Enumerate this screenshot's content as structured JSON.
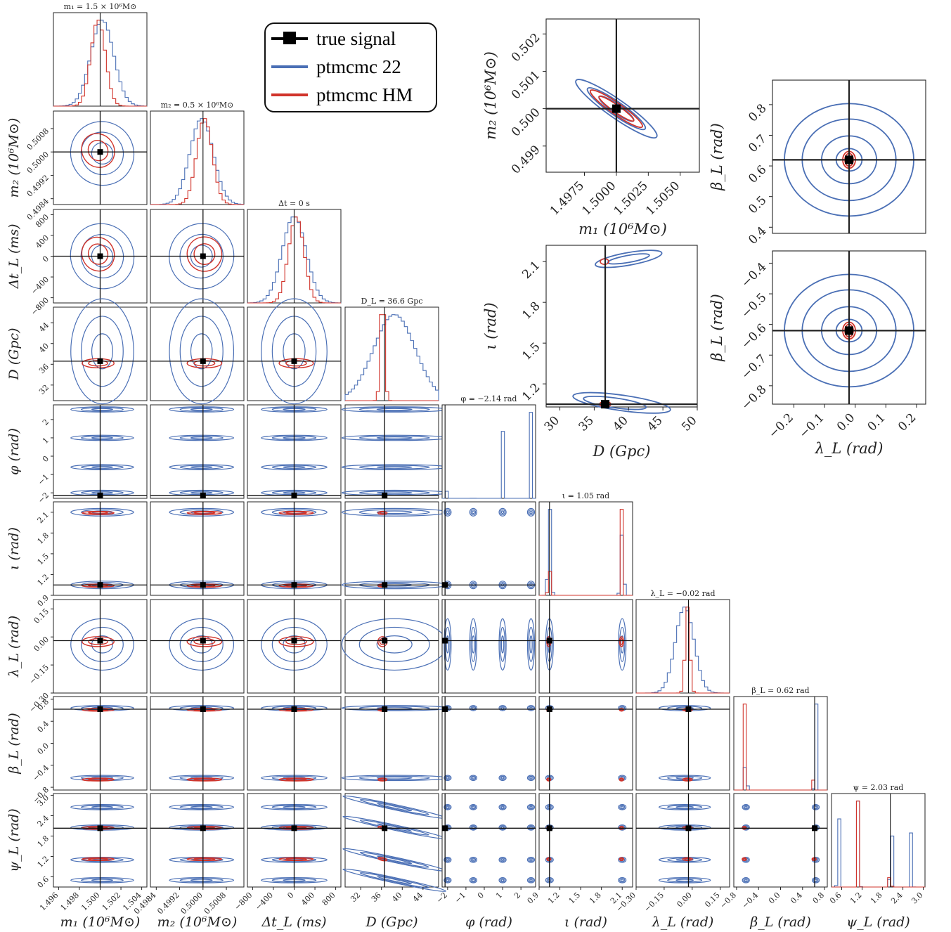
{
  "colors": {
    "true_signal": "#000000",
    "ptmcmc_22": "#4a6fb5",
    "ptmcmc_hm": "#d1342b"
  },
  "legend": [
    {
      "label": "true signal",
      "color": "#000000",
      "marker": "square"
    },
    {
      "label": "ptmcmc 22",
      "color": "#4a6fb5"
    },
    {
      "label": "ptmcmc HM",
      "color": "#d1342b"
    }
  ],
  "corner": {
    "params": [
      {
        "key": "m1",
        "xlabel": "m₁ (10⁶M⊙)",
        "ylabel": "m₂ (10⁶M⊙)",
        "title": "m₁ = 1.5 × 10⁶M⊙",
        "truth": 1.5,
        "range": [
          1.4955,
          1.5045
        ],
        "ticks": [
          "1.496",
          "1.498",
          "1.500",
          "1.502",
          "1.504"
        ],
        "tickvals": [
          1.496,
          1.498,
          1.5,
          1.502,
          1.504
        ]
      },
      {
        "key": "m2",
        "xlabel": "m₂ (10⁶M⊙)",
        "ylabel": "m₂ (10⁶M⊙)",
        "title": "m₂ = 0.5 × 10⁶M⊙",
        "truth": 0.5,
        "range": [
          0.4982,
          0.5014
        ],
        "ticks": [
          "0.4984",
          "0.4992",
          "0.5000",
          "0.5008"
        ],
        "tickvals": [
          0.4984,
          0.4992,
          0.5,
          0.5008
        ]
      },
      {
        "key": "dt",
        "xlabel": "Δt_L (ms)",
        "ylabel": "Δt_L (ms)",
        "title": "Δt = 0 s",
        "truth": 0,
        "range": [
          -900,
          900
        ],
        "ticks": [
          "−800",
          "−400",
          "0",
          "400",
          "800"
        ],
        "tickvals": [
          -800,
          -400,
          0,
          400,
          800
        ]
      },
      {
        "key": "D",
        "xlabel": "D (Gpc)",
        "ylabel": "D (Gpc)",
        "title": "D_L = 36.6 Gpc",
        "truth": 36.6,
        "range": [
          29,
          47
        ],
        "ticks": [
          "32",
          "36",
          "40",
          "44"
        ],
        "tickvals": [
          32,
          36,
          40,
          44
        ]
      },
      {
        "key": "phi",
        "xlabel": "φ (rad)",
        "ylabel": "φ (rad)",
        "title": "φ = −2.14 rad",
        "truth": -2.14,
        "range": [
          -2.3,
          2.8
        ],
        "ticks": [
          "−2",
          "−1",
          "0",
          "1",
          "2"
        ],
        "tickvals": [
          -2,
          -1,
          0,
          1,
          2
        ]
      },
      {
        "key": "iota",
        "xlabel": "ι (rad)",
        "ylabel": "ι (rad)",
        "title": "ι = 1.05 rad",
        "truth": 1.05,
        "range": [
          0.9,
          2.25
        ],
        "ticks": [
          "0.9",
          "1.2",
          "1.5",
          "1.8",
          "2.1"
        ],
        "tickvals": [
          0.9,
          1.2,
          1.5,
          1.8,
          2.1
        ]
      },
      {
        "key": "lam",
        "xlabel": "λ_L (rad)",
        "ylabel": "λ_L (rad)",
        "title": "λ_L = −0.02 rad",
        "truth": -0.02,
        "range": [
          -0.3,
          0.2
        ],
        "ticks": [
          "−0.30",
          "−0.15",
          "0.00",
          "0.15"
        ],
        "tickvals": [
          -0.3,
          -0.15,
          0,
          0.15
        ]
      },
      {
        "key": "beta",
        "xlabel": "β_L (rad)",
        "ylabel": "β_L (rad)",
        "title": "β_L = 0.62 rad",
        "truth": 0.62,
        "range": [
          -0.85,
          0.85
        ],
        "ticks": [
          "−0.8",
          "−0.4",
          "0.0",
          "0.4",
          "0.8"
        ],
        "tickvals": [
          -0.8,
          -0.4,
          0,
          0.4,
          0.8
        ]
      },
      {
        "key": "psi",
        "xlabel": "ψ_L (rad)",
        "ylabel": "ψ_L (rad)",
        "title": "ψ = 2.03 rad",
        "truth": 2.03,
        "range": [
          0.3,
          3.05
        ],
        "ticks": [
          "0.6",
          "1.2",
          "1.8",
          "2.4",
          "3.0"
        ],
        "tickvals": [
          0.6,
          1.2,
          1.8,
          2.4,
          3.0
        ]
      }
    ]
  },
  "chart_data": [
    {
      "type": "scatter",
      "description": "Corner plot of 9 GW source parameters, ptmcmc 22 (blue) vs ptmcmc HM (red) posteriors",
      "truth": {
        "m1": 1.5,
        "m2": 0.5,
        "dt": 0,
        "D": 36.6,
        "phi": -2.14,
        "iota": 1.05,
        "lambda_L": -0.02,
        "beta_L": 0.62,
        "psi": 2.03
      },
      "modes_22": {
        "phi": [
          -2.0,
          -0.6,
          1.0,
          2.5
        ],
        "iota": [
          1.05,
          2.1
        ],
        "beta_L": [
          0.62,
          -0.62
        ],
        "psi": [
          0.5,
          1.1,
          2.03,
          2.65
        ]
      },
      "modes_HM": {
        "iota": [
          1.05,
          2.1
        ],
        "beta_L": [
          0.62,
          -0.62
        ],
        "psi": [
          1.1,
          2.03
        ]
      }
    },
    {
      "type": "scatter",
      "xlabel": "m₁ (10⁶M⊙)",
      "ylabel": "m₂ (10⁶M⊙)",
      "xticks": [
        "1.4975",
        "1.5000",
        "1.5025",
        "1.5050"
      ],
      "yticks": [
        "0.499",
        "0.500",
        "0.501",
        "0.502"
      ],
      "xlim": [
        1.4945,
        1.5065
      ],
      "ylim": [
        0.4983,
        0.5024
      ],
      "truth": [
        1.5,
        0.5
      ]
    },
    {
      "type": "scatter",
      "xlabel": "λ_L (rad)",
      "ylabel": "β_L (rad)",
      "yticks": [
        "0.4",
        "0.5",
        "0.6",
        "0.7",
        "0.8"
      ],
      "ylim": [
        0.38,
        0.88
      ],
      "truth": [
        -0.02,
        0.62
      ]
    },
    {
      "type": "scatter",
      "xlabel": "D (Gpc)",
      "ylabel": "ι (rad)",
      "xticks": [
        "30",
        "35",
        "40",
        "45",
        "50"
      ],
      "yticks": [
        "1.2",
        "1.5",
        "1.8",
        "2.1"
      ],
      "xlim": [
        28,
        50
      ],
      "ylim": [
        1.03,
        2.22
      ],
      "truth": [
        36.6,
        1.05
      ]
    },
    {
      "type": "scatter",
      "xlabel": "λ_L (rad)",
      "ylabel": "β_L (rad)",
      "xticks": [
        "−0.2",
        "−0.1",
        "0.0",
        "0.1",
        "0.2"
      ],
      "yticks": [
        "−0.4",
        "−0.5",
        "−0.6",
        "−0.7",
        "−0.8"
      ],
      "xlim": [
        -0.27,
        0.23
      ],
      "ylim": [
        -0.86,
        -0.36
      ],
      "truth": [
        -0.02,
        -0.62
      ]
    }
  ]
}
